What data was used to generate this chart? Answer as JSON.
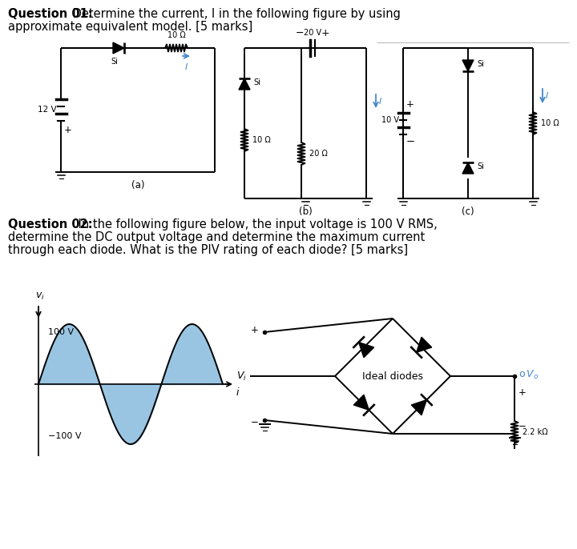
{
  "bg": "#ffffff",
  "lc": "#000000",
  "blue": "#4488cc",
  "wave_fill": "#88bbdd",
  "q1_bold": "Question 01:",
  "q1_rest": " Determine the current, I in the following figure by using",
  "q1_line2": "approximate equivalent model. [5 marks]",
  "q2_bold": "Question 02:",
  "q2_rest": " In the following figure below, the input voltage is 100 V RMS,",
  "q2_line2": "determine the DC output voltage and determine the maximum current",
  "q2_line3": "through each diode. What is the PIV rating of each diode? [5 marks]",
  "lw": 1.4,
  "fs_main": 10.5,
  "fs_small": 7.5,
  "fs_tiny": 7.0
}
